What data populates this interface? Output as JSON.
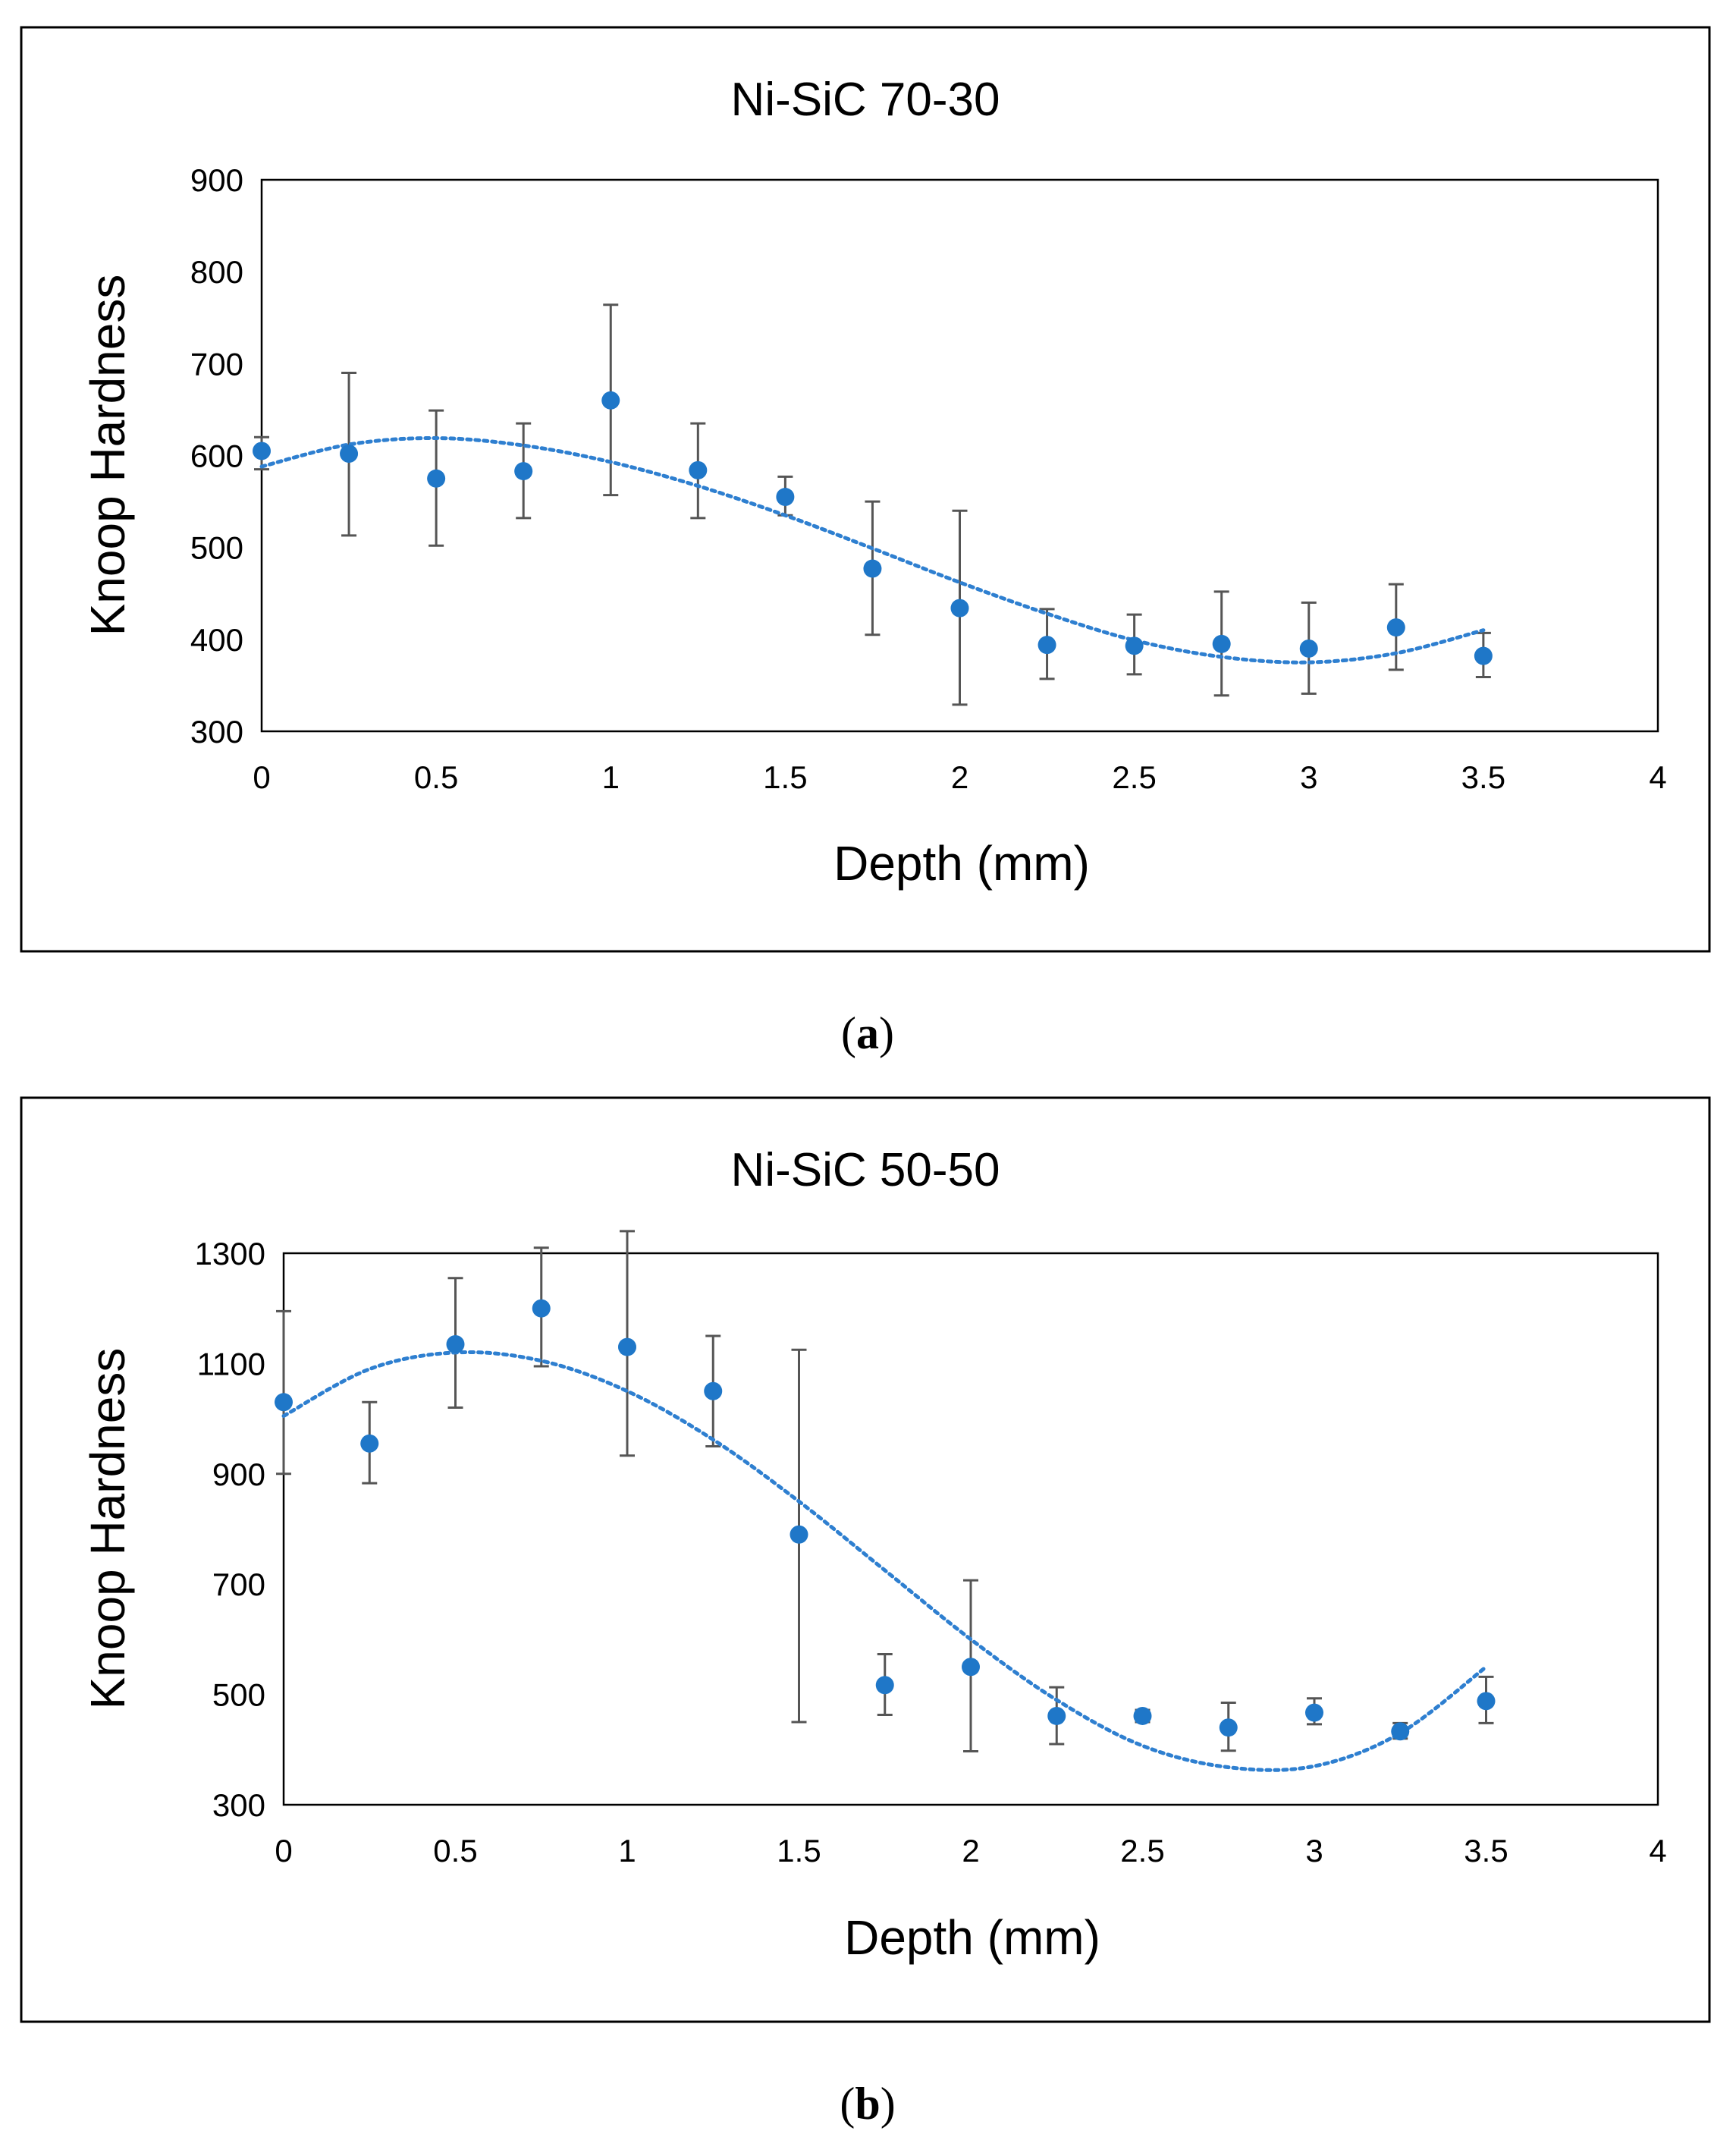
{
  "panels": [
    {
      "caption_letter": "a",
      "chart_data": {
        "type": "scatter",
        "title": "Ni-SiC 70-30",
        "xlabel": "Depth (mm)",
        "ylabel": "Knoop Hardness",
        "xlim": [
          0,
          4
        ],
        "ylim": [
          300,
          900
        ],
        "xticks": [
          0,
          0.5,
          1,
          1.5,
          2,
          2.5,
          3,
          3.5,
          4
        ],
        "yticks": [
          300,
          400,
          500,
          600,
          700,
          800,
          900
        ],
        "xtick_labels": [
          "0",
          "0.5",
          "1",
          "1.5",
          "2",
          "2.5",
          "3",
          "3.5",
          "4"
        ],
        "ytick_labels": [
          "300",
          "400",
          "500",
          "600",
          "700",
          "800",
          "900"
        ],
        "series": [
          {
            "name": "Knoop Hardness",
            "x": [
              0,
              0.25,
              0.5,
              0.75,
              1,
              1.25,
              1.5,
              1.75,
              2,
              2.25,
              2.5,
              2.75,
              3,
              3.25,
              3.5
            ],
            "y": [
              605,
              602,
              575,
              583,
              660,
              584,
              555,
              477,
              434,
              394,
              393,
              395,
              390,
              413,
              382
            ],
            "err_low": [
              585,
              513,
              502,
              532,
              557,
              532,
              535,
              405,
              329,
              357,
              362,
              339,
              341,
              367,
              359
            ],
            "err_high": [
              620,
              690,
              649,
              635,
              764,
              635,
              577,
              550,
              540,
              433,
              427,
              452,
              440,
              460,
              407
            ]
          }
        ],
        "trendline": {
          "style": "dotted",
          "x": [
            0,
            0.25,
            0.5,
            0.75,
            1,
            1.25,
            1.5,
            1.75,
            2,
            2.25,
            2.5,
            2.75,
            3,
            3.25,
            3.5
          ],
          "y": [
            588,
            612,
            619,
            611,
            593,
            567,
            535,
            499,
            462,
            428,
            399,
            381,
            375,
            385,
            410
          ]
        }
      }
    },
    {
      "caption_letter": "b",
      "chart_data": {
        "type": "scatter",
        "title": "Ni-SiC 50-50",
        "xlabel": "Depth (mm)",
        "ylabel": "Knoop Hardness",
        "xlim": [
          0,
          4
        ],
        "ylim": [
          300,
          1300
        ],
        "xticks": [
          0,
          0.5,
          1,
          1.5,
          2,
          2.5,
          3,
          3.5,
          4
        ],
        "yticks": [
          300,
          500,
          700,
          900,
          1100,
          1300
        ],
        "xtick_labels": [
          "0",
          "0.5",
          "1",
          "1.5",
          "2",
          "2.5",
          "3",
          "3.5",
          "4"
        ],
        "ytick_labels": [
          "300",
          "500",
          "700",
          "900",
          "1100",
          "1300"
        ],
        "series": [
          {
            "name": "Knoop Hardness",
            "x": [
              0,
              0.25,
              0.5,
              0.75,
              1,
              1.25,
              1.5,
              1.75,
              2,
              2.25,
              2.5,
              2.75,
              3,
              3.25,
              3.5
            ],
            "y": [
              1030,
              955,
              1135,
              1200,
              1130,
              1050,
              790,
              517,
              550,
              461,
              461,
              440,
              467,
              433,
              488
            ],
            "err_low": [
              900,
              883,
              1020,
              1095,
              933,
              950,
              450,
              463,
              397,
              410,
              450,
              398,
              446,
              420,
              448
            ],
            "err_high": [
              1195,
              1030,
              1255,
              1310,
              1340,
              1150,
              1125,
              573,
              707,
              513,
              472,
              485,
              493,
              448,
              532
            ]
          }
        ],
        "trendline": {
          "style": "dotted",
          "x": [
            0,
            0.25,
            0.5,
            0.75,
            1,
            1.25,
            1.5,
            1.75,
            2,
            2.25,
            2.5,
            2.75,
            3,
            3.25,
            3.5
          ],
          "y": [
            1005,
            1090,
            1120,
            1105,
            1050,
            962,
            850,
            725,
            600,
            490,
            407,
            368,
            370,
            430,
            550
          ]
        }
      }
    }
  ]
}
